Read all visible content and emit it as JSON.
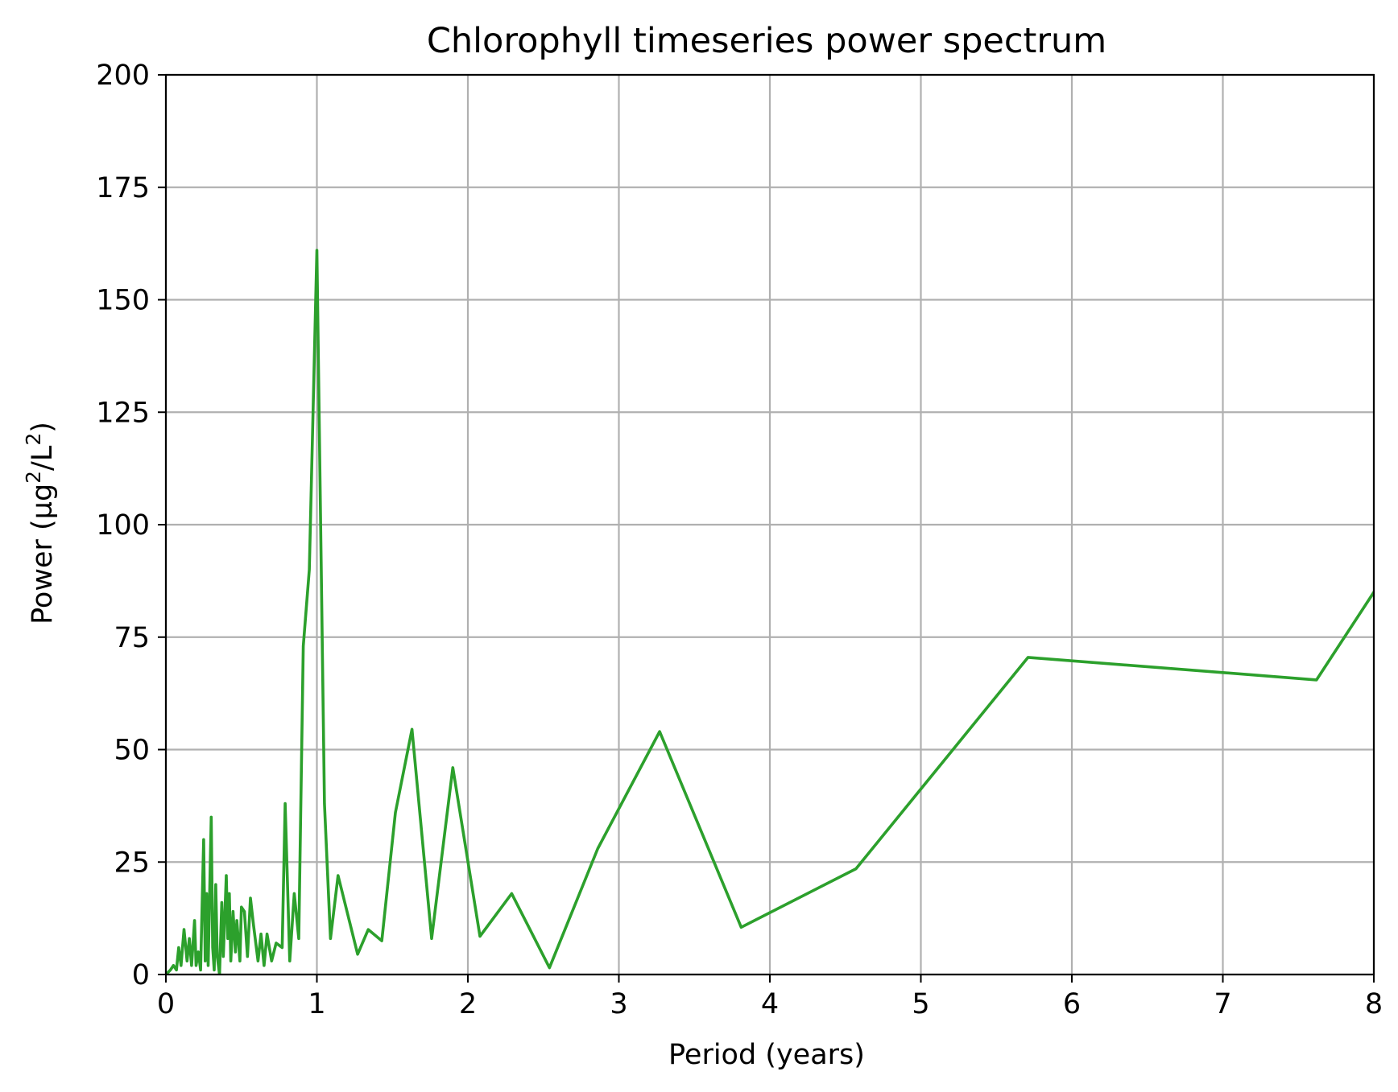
{
  "chart_data": {
    "type": "line",
    "title": "Chlorophyll timeseries power spectrum",
    "xlabel": "Period (years)",
    "ylabel": "Power (µg²/L²)",
    "ylabel_parts": {
      "before": "Power (µg",
      "sup1": "2",
      "middle": "/L",
      "sup2": "2",
      "after": ")"
    },
    "xlim": [
      0,
      8
    ],
    "ylim": [
      0,
      200
    ],
    "xticks": [
      0,
      1,
      2,
      3,
      4,
      5,
      6,
      7,
      8
    ],
    "yticks": [
      0,
      25,
      50,
      75,
      100,
      125,
      150,
      175,
      200
    ],
    "grid": true,
    "line_color": "#2ca02c",
    "series": [
      {
        "x": [
          0.0,
          0.03,
          0.05,
          0.07,
          0.085,
          0.1,
          0.12,
          0.14,
          0.155,
          0.17,
          0.19,
          0.2,
          0.215,
          0.23,
          0.25,
          0.26,
          0.27,
          0.28,
          0.3,
          0.31,
          0.32,
          0.33,
          0.34,
          0.355,
          0.37,
          0.38,
          0.4,
          0.41,
          0.42,
          0.43,
          0.445,
          0.46,
          0.47,
          0.49,
          0.5,
          0.52,
          0.54,
          0.56,
          0.58,
          0.61,
          0.63,
          0.65,
          0.67,
          0.7,
          0.73,
          0.77,
          0.79,
          0.82,
          0.85,
          0.88,
          0.91,
          0.95,
          1.0,
          1.05,
          1.09,
          1.14,
          1.27,
          1.34,
          1.43,
          1.52,
          1.63,
          1.76,
          1.9,
          2.08,
          2.29,
          2.54,
          2.86,
          3.27,
          3.81,
          4.57,
          5.71,
          7.62,
          8.0
        ],
        "y": [
          0,
          1,
          2,
          1,
          6,
          2,
          10,
          3,
          8,
          2,
          12,
          2,
          5,
          1,
          30,
          3,
          18,
          2,
          35,
          6,
          1,
          20,
          4,
          0,
          16,
          4,
          22,
          8,
          18,
          3,
          14,
          5,
          12,
          3,
          15,
          14,
          4,
          17,
          11,
          3,
          9,
          2,
          9,
          3,
          7,
          6,
          38,
          3,
          18,
          8,
          73,
          90,
          161,
          38,
          8,
          22,
          4.5,
          10,
          7.5,
          36,
          54.5,
          8,
          46,
          8.5,
          18,
          1.5,
          28,
          54,
          10.5,
          23.5,
          70.5,
          65.5,
          85
        ]
      }
    ]
  }
}
